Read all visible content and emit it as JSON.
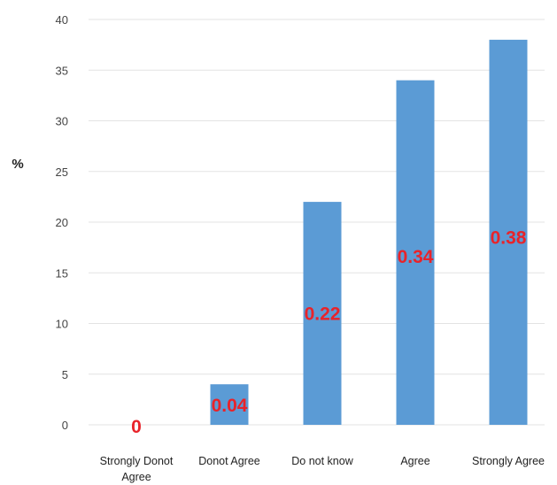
{
  "chart_data": {
    "type": "bar",
    "ylabel": "%",
    "ylim": [
      0,
      40
    ],
    "yticks": [
      "0",
      "5",
      "10",
      "15",
      "20",
      "25",
      "30",
      "35",
      "40"
    ],
    "grid": true,
    "categories": [
      [
        "Strongly Donot",
        "Agree"
      ],
      [
        "Donot Agree"
      ],
      [
        "Do not know"
      ],
      [
        "Agree"
      ],
      [
        "Strongly Agree"
      ]
    ],
    "values": [
      0,
      4,
      22,
      34,
      38
    ],
    "data_labels": [
      "0",
      "0.04",
      "0.22",
      "0.34",
      "0.38"
    ],
    "colors": {
      "bar": "#5b9bd5",
      "data_label": "#e8232a"
    }
  }
}
